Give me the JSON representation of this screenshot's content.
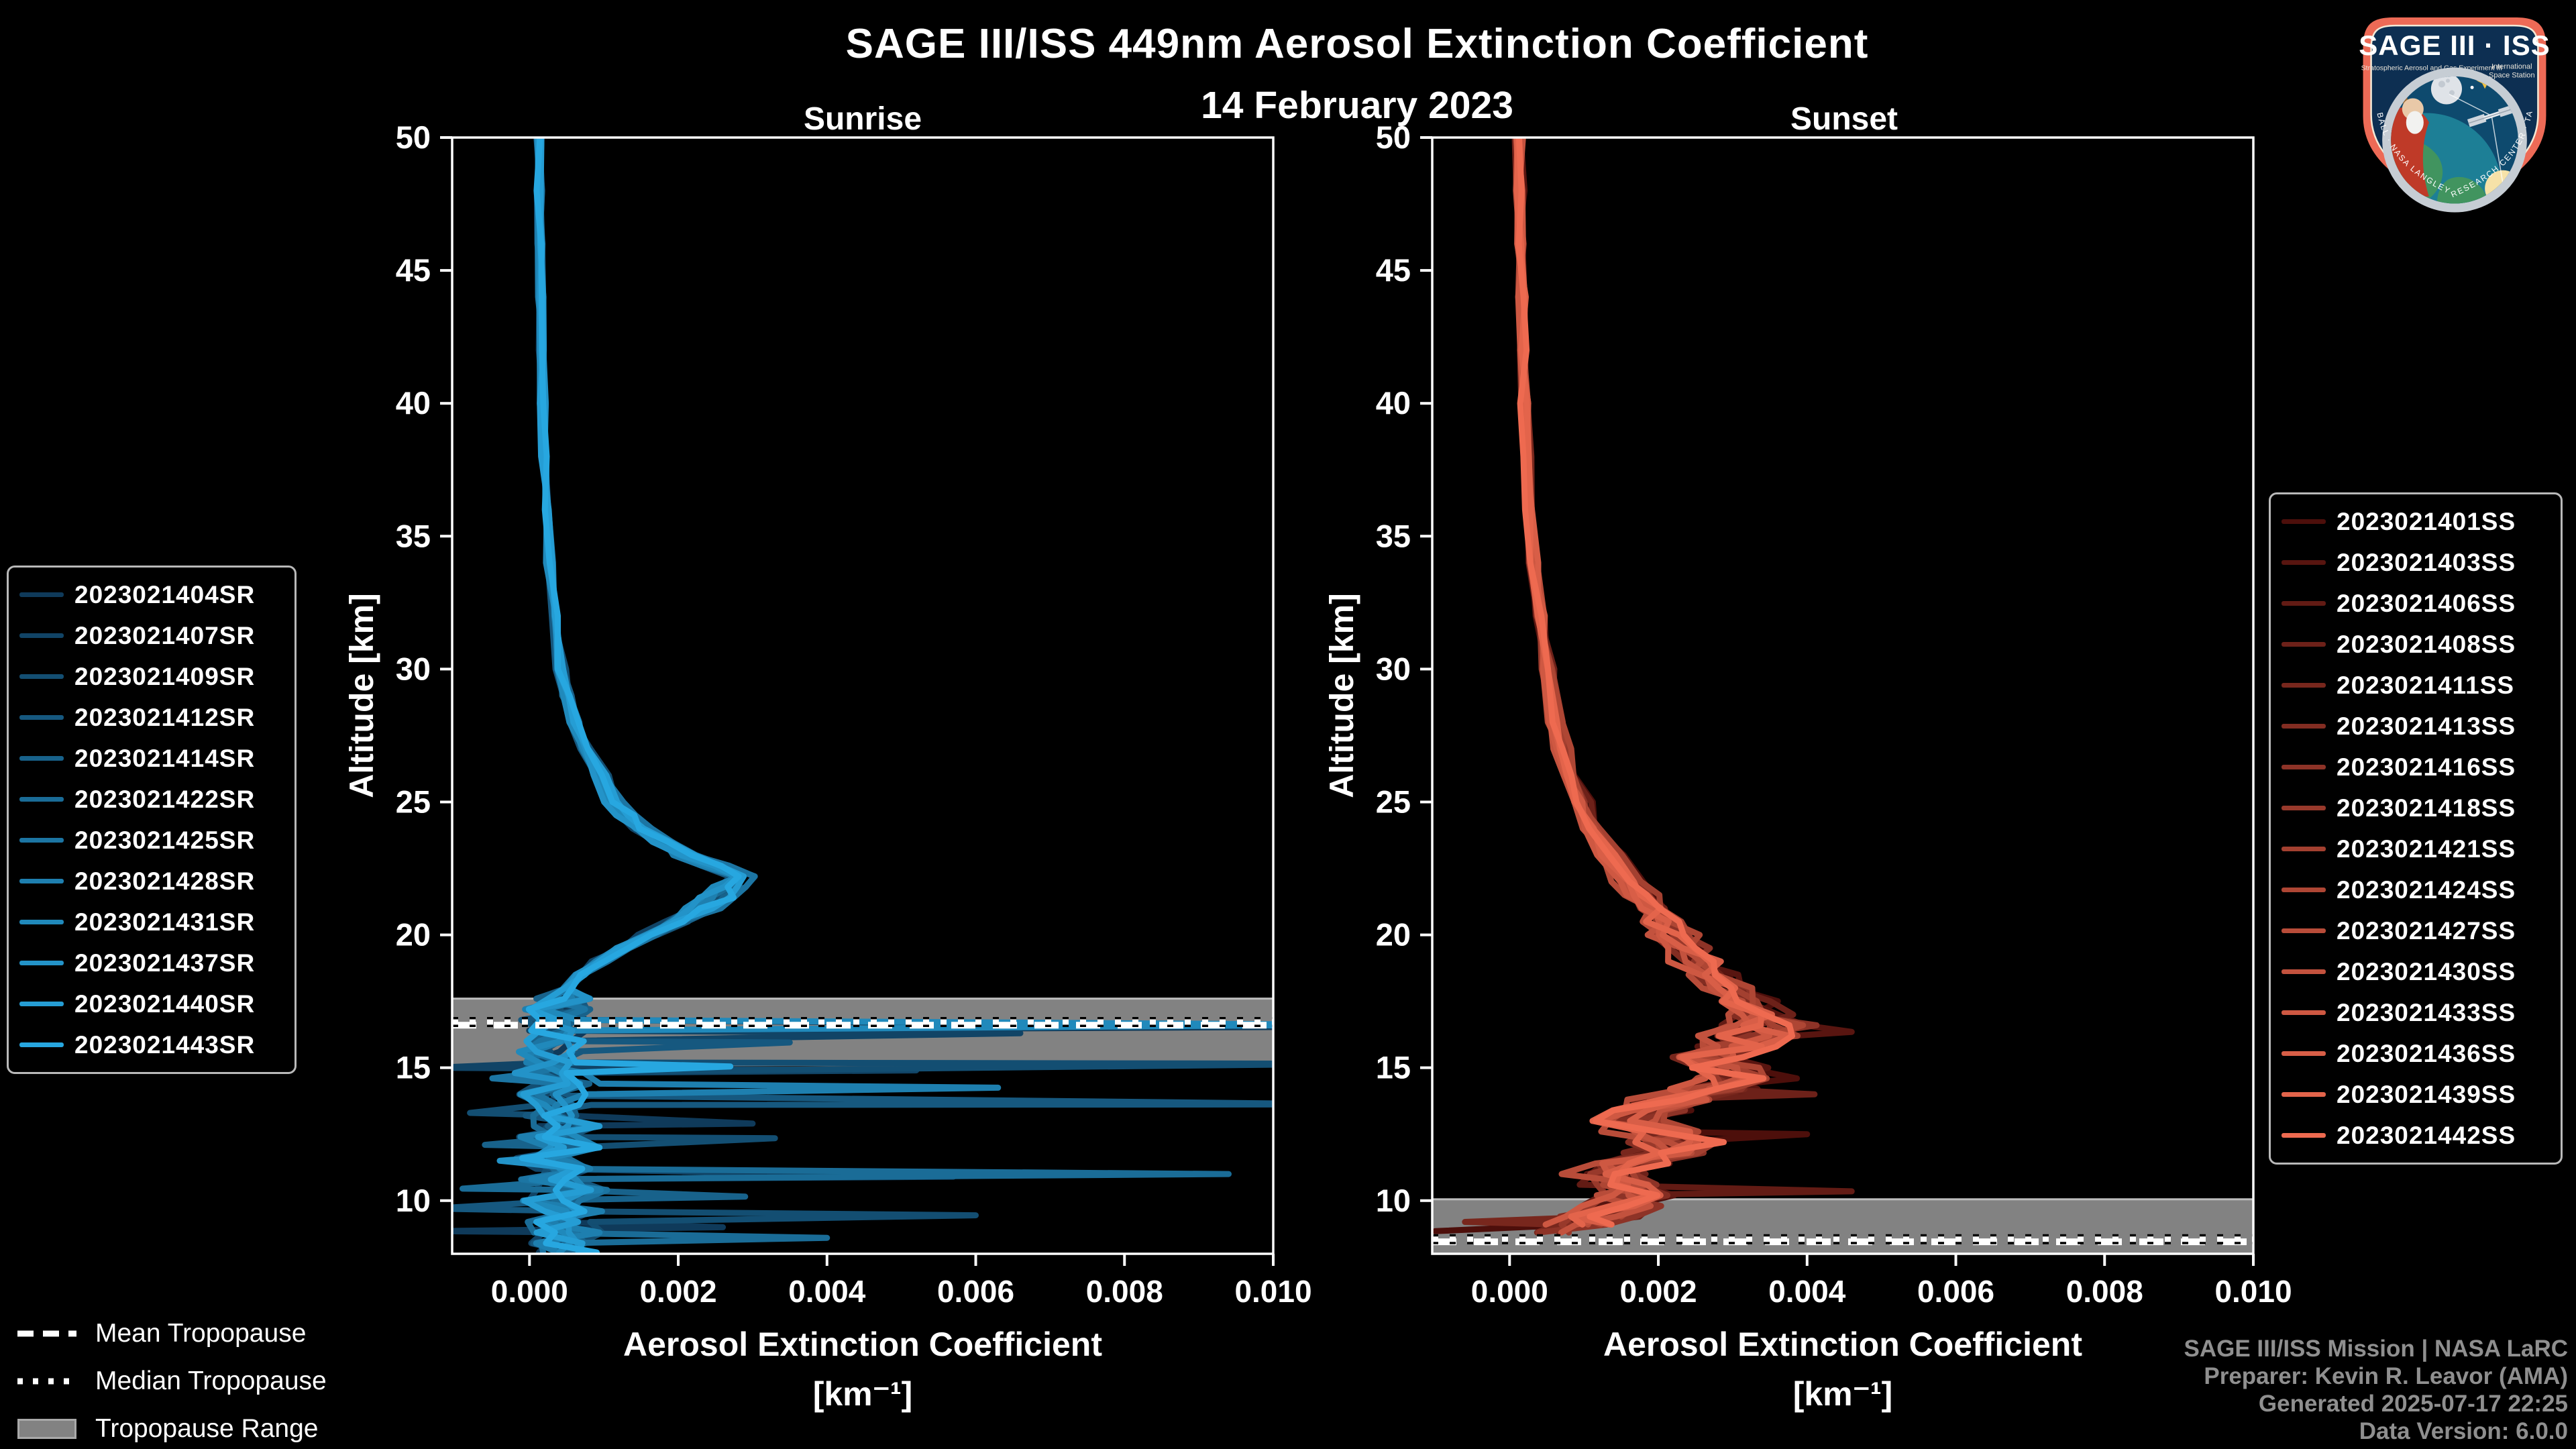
{
  "header": {
    "title": "SAGE III/ISS 449nm Aerosol Extinction Coefficient",
    "date": "14 February 2023"
  },
  "colors": {
    "background": "#000000",
    "axis": "#ffffff",
    "tick_label": "#ffffff",
    "band": "#828282",
    "band_edge": "#bdbdbd",
    "mean_line": "#ffffff",
    "median_line": "#ffffff",
    "median_outline": "#000000",
    "legend_border": "#b9b9b9",
    "credits_text": "#8f8f8f"
  },
  "chart_data": [
    {
      "type": "line",
      "title": "Sunrise",
      "xlabel": "Aerosol Extinction Coefficient",
      "xlabel_units": "[km⁻¹]",
      "ylabel": "Altitude [km]",
      "xlim": [
        -0.00104,
        0.01
      ],
      "ylim": [
        8,
        50
      ],
      "grid": false,
      "legend_position": "outside-left",
      "xticks": [
        0.0,
        0.002,
        0.004,
        0.006,
        0.008,
        0.01
      ],
      "xtick_labels": [
        "0.000",
        "0.002",
        "0.004",
        "0.006",
        "0.008",
        "0.010"
      ],
      "yticks": [
        10,
        15,
        20,
        25,
        30,
        35,
        40,
        45,
        50
      ],
      "series": [
        {
          "label": "2023021404SR",
          "color": "#0f3a5a"
        },
        {
          "label": "2023021407SR",
          "color": "#114466"
        },
        {
          "label": "2023021409SR",
          "color": "#134e72"
        },
        {
          "label": "2023021412SR",
          "color": "#16587f"
        },
        {
          "label": "2023021414SR",
          "color": "#18628b"
        },
        {
          "label": "2023021422SR",
          "color": "#1a6c97"
        },
        {
          "label": "2023021425SR",
          "color": "#1c75a3"
        },
        {
          "label": "2023021428SR",
          "color": "#1e7faf"
        },
        {
          "label": "2023021431SR",
          "color": "#2089bb"
        },
        {
          "label": "2023021437SR",
          "color": "#2393c8"
        },
        {
          "label": "2023021440SR",
          "color": "#259dd4"
        },
        {
          "label": "2023021443SR",
          "color": "#27a7e0"
        }
      ],
      "base_profile": [
        [
          50,
          0.00013
        ],
        [
          48,
          0.00013
        ],
        [
          46,
          0.00014
        ],
        [
          44,
          0.00015
        ],
        [
          42,
          0.00016
        ],
        [
          40,
          0.00018
        ],
        [
          38,
          0.0002
        ],
        [
          36,
          0.00023
        ],
        [
          34,
          0.00027
        ],
        [
          32,
          0.00033
        ],
        [
          30,
          0.00042
        ],
        [
          29,
          0.0005
        ],
        [
          28,
          0.0006
        ],
        [
          27,
          0.00075
        ],
        [
          26,
          0.00095
        ],
        [
          25,
          0.00115
        ],
        [
          24.5,
          0.0013
        ],
        [
          24,
          0.0015
        ],
        [
          23.5,
          0.0018
        ],
        [
          23,
          0.0021
        ],
        [
          22.6,
          0.0025
        ],
        [
          22.2,
          0.0028
        ],
        [
          21.8,
          0.0027
        ],
        [
          21.4,
          0.0025
        ],
        [
          21,
          0.0023
        ],
        [
          20.5,
          0.002
        ],
        [
          20,
          0.0016
        ],
        [
          19.5,
          0.00125
        ],
        [
          19,
          0.00095
        ],
        [
          18.5,
          0.0007
        ],
        [
          18,
          0.00052
        ],
        [
          17.6,
          0.0004
        ],
        [
          17.2,
          0.00032
        ],
        [
          16.8,
          0.00035
        ],
        [
          16.4,
          0.0003
        ],
        [
          16,
          0.00042
        ],
        [
          15.6,
          0.0003
        ],
        [
          15.2,
          0.00045
        ],
        [
          14.8,
          0.00028
        ],
        [
          14.4,
          0.0005
        ],
        [
          14,
          0.0003
        ],
        [
          13.6,
          0.00045
        ],
        [
          13.2,
          0.00028
        ],
        [
          12.8,
          0.0005
        ],
        [
          12.4,
          0.00032
        ],
        [
          12,
          0.00055
        ],
        [
          11.6,
          0.0003
        ],
        [
          11.2,
          0.0005
        ],
        [
          10.8,
          0.00035
        ],
        [
          10.4,
          0.00055
        ],
        [
          10,
          0.0003
        ],
        [
          9.6,
          0.0006
        ],
        [
          9.2,
          0.00035
        ],
        [
          8.8,
          0.00055
        ],
        [
          8.4,
          0.0004
        ],
        [
          8.05,
          0.0005
        ]
      ],
      "jitter": {
        "spaghetti_below": 17.8,
        "rel": 0.05,
        "abs_above": 4e-05,
        "abs_below": 0.00048
      },
      "end_alt_min": 8.02,
      "end_alt_max": 8.02,
      "spikes": [
        [
          0,
          16.55,
          0.0112
        ],
        [
          8,
          16.62,
          0.0112
        ],
        [
          1,
          16.3,
          0.0066
        ],
        [
          3,
          15.95,
          0.0035
        ],
        [
          2,
          15.15,
          0.0112
        ],
        [
          11,
          15.05,
          0.0027
        ],
        [
          1,
          14.9,
          0.0052
        ],
        [
          7,
          14.25,
          0.0063
        ],
        [
          3,
          13.62,
          0.0112
        ],
        [
          0,
          12.9,
          0.003
        ],
        [
          2,
          12.35,
          0.0033
        ],
        [
          5,
          11.0,
          0.0094
        ],
        [
          1,
          10.9,
          0.0057
        ],
        [
          4,
          10.15,
          0.0029
        ],
        [
          2,
          9.45,
          0.006
        ],
        [
          0,
          9.0,
          0.0026
        ],
        [
          5,
          8.6,
          0.004
        ],
        [
          1,
          15.0,
          -0.0013
        ],
        [
          3,
          9.7,
          -0.0013
        ],
        [
          0,
          8.85,
          -0.0013
        ],
        [
          2,
          13.3,
          -0.0008
        ],
        [
          4,
          12.1,
          -0.0006
        ],
        [
          5,
          10.45,
          -0.0009
        ],
        [
          6,
          14.6,
          -0.0005
        ],
        [
          9,
          11.5,
          -0.0004
        ]
      ],
      "tropopause": {
        "mean": 16.6,
        "median": 16.72,
        "range": [
          15.1,
          17.6
        ]
      }
    },
    {
      "type": "line",
      "title": "Sunset",
      "xlabel": "Aerosol Extinction Coefficient",
      "xlabel_units": "[km⁻¹]",
      "ylabel": "Altitude [km]",
      "xlim": [
        -0.00104,
        0.01
      ],
      "ylim": [
        8,
        50
      ],
      "grid": false,
      "legend_position": "outside-right",
      "xticks": [
        0.0,
        0.002,
        0.004,
        0.006,
        0.008,
        0.01
      ],
      "xtick_labels": [
        "0.000",
        "0.002",
        "0.004",
        "0.006",
        "0.008",
        "0.010"
      ],
      "yticks": [
        10,
        15,
        20,
        25,
        30,
        35,
        40,
        45,
        50
      ],
      "series": [
        {
          "label": "2023021401SS",
          "color": "#4d0f0b"
        },
        {
          "label": "2023021403SS",
          "color": "#581510"
        },
        {
          "label": "2023021406SS",
          "color": "#621b14"
        },
        {
          "label": "2023021408SS",
          "color": "#6d2119"
        },
        {
          "label": "2023021411SS",
          "color": "#78271d"
        },
        {
          "label": "2023021413SS",
          "color": "#832d22"
        },
        {
          "label": "2023021416SS",
          "color": "#8d3327"
        },
        {
          "label": "2023021418SS",
          "color": "#98392b"
        },
        {
          "label": "2023021421SS",
          "color": "#a34030"
        },
        {
          "label": "2023021424SS",
          "color": "#ae4634"
        },
        {
          "label": "2023021427SS",
          "color": "#b84c39"
        },
        {
          "label": "2023021430SS",
          "color": "#c3523e"
        },
        {
          "label": "2023021433SS",
          "color": "#ce5842"
        },
        {
          "label": "2023021436SS",
          "color": "#d85e47"
        },
        {
          "label": "2023021439SS",
          "color": "#e3644b"
        },
        {
          "label": "2023021442SS",
          "color": "#ee6a50"
        }
      ],
      "base_profile": [
        [
          50,
          0.00013
        ],
        [
          48,
          0.00014
        ],
        [
          46,
          0.00015
        ],
        [
          44,
          0.00016
        ],
        [
          42,
          0.00018
        ],
        [
          40,
          0.0002
        ],
        [
          38,
          0.00023
        ],
        [
          36,
          0.00027
        ],
        [
          34,
          0.00032
        ],
        [
          32,
          0.0004
        ],
        [
          30,
          0.0005
        ],
        [
          28,
          0.00062
        ],
        [
          27,
          0.0007
        ],
        [
          26,
          0.0008
        ],
        [
          25,
          0.00095
        ],
        [
          24,
          0.0011
        ],
        [
          23,
          0.00135
        ],
        [
          22,
          0.0016
        ],
        [
          21.5,
          0.00175
        ],
        [
          21,
          0.0019
        ],
        [
          20.5,
          0.00205
        ],
        [
          20,
          0.0022
        ],
        [
          19.5,
          0.00235
        ],
        [
          19,
          0.00255
        ],
        [
          18.5,
          0.00275
        ],
        [
          18,
          0.00295
        ],
        [
          17.5,
          0.00315
        ],
        [
          17,
          0.0033
        ],
        [
          16.6,
          0.00345
        ],
        [
          16.2,
          0.0033
        ],
        [
          15.8,
          0.00295
        ],
        [
          15.4,
          0.00265
        ],
        [
          15,
          0.00285
        ],
        [
          14.6,
          0.0031
        ],
        [
          14.2,
          0.00275
        ],
        [
          13.8,
          0.00225
        ],
        [
          13.4,
          0.00185
        ],
        [
          13,
          0.00155
        ],
        [
          12.6,
          0.0019
        ],
        [
          12.2,
          0.00225
        ],
        [
          11.8,
          0.00205
        ],
        [
          11.4,
          0.00165
        ],
        [
          11,
          0.00125
        ],
        [
          10.6,
          0.00145
        ],
        [
          10.2,
          0.0017
        ],
        [
          9.8,
          0.00145
        ],
        [
          9.4,
          0.00115
        ],
        [
          9.1,
          0.0009
        ],
        [
          8.8,
          0.00075
        ]
      ],
      "jitter": {
        "spaghetti_below": 17.0,
        "rel": 0.09,
        "abs_above": 5e-05,
        "abs_below": 0.00055
      },
      "end_alt_min": 8.6,
      "end_alt_max": 9.2,
      "spikes": [
        [
          1,
          16.35,
          0.0046
        ],
        [
          2,
          10.35,
          0.0046
        ],
        [
          0,
          12.5,
          0.004
        ],
        [
          3,
          14.0,
          0.0041
        ],
        [
          0,
          8.85,
          -0.001
        ],
        [
          4,
          9.2,
          -0.0006
        ]
      ],
      "tropopause": {
        "mean": 8.45,
        "median": 8.55,
        "range": [
          8.0,
          10.05
        ]
      }
    }
  ],
  "tropopause_legend": {
    "items": [
      {
        "label": "Mean Tropopause",
        "style": "dashed-white-line"
      },
      {
        "label": "Median Tropopause",
        "style": "dotted-white-line"
      },
      {
        "label": "Tropopause Range",
        "style": "gray-filled-band"
      }
    ]
  },
  "credits": {
    "lines": [
      "SAGE III/ISS Mission | NASA LaRC",
      "Preparer: Kevin R. Leavor (AMA)",
      "Generated 2025-07-17 22:25",
      "Data Version: 6.0.0"
    ]
  },
  "logo": {
    "title": "SAGE III · ISS",
    "subtitle_left": "Stratospheric Aerosol and Gas Experiment III",
    "subtitle_right_1": "International",
    "subtitle_right_2": "Space Station",
    "border_text": "BALL · NASA LANGLEY RESEARCH CENTER · TAS-I · ESA"
  }
}
